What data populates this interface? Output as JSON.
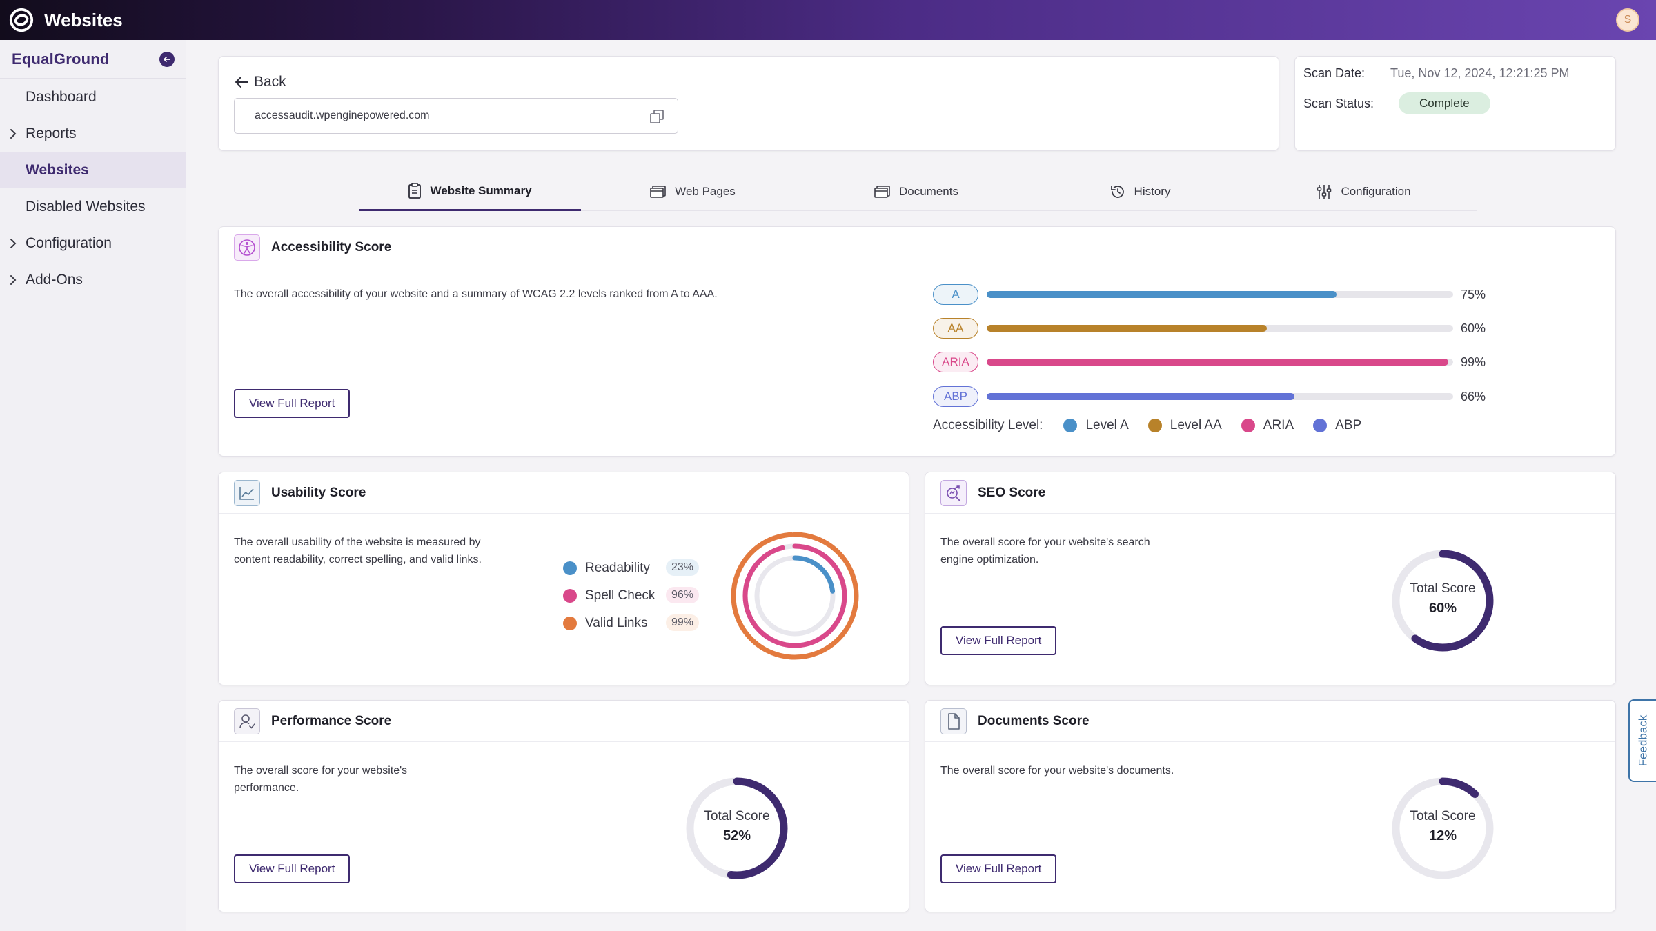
{
  "app": {
    "title": "Websites",
    "avatar_initial": "S"
  },
  "sidebar": {
    "org_name": "EqualGround",
    "items": [
      {
        "label": "Dashboard"
      },
      {
        "label": "Reports"
      },
      {
        "label": "Websites"
      },
      {
        "label": "Disabled Websites"
      },
      {
        "label": "Configuration"
      },
      {
        "label": "Add-Ons"
      }
    ]
  },
  "header": {
    "back_label": "Back",
    "url": "accessaudit.wpenginepowered.com",
    "scan_date_label": "Scan Date:",
    "scan_date_value": "Tue, Nov 12, 2024, 12:21:25 PM",
    "scan_status_label": "Scan Status:",
    "scan_status_value": "Complete"
  },
  "tabs": [
    {
      "label": "Website Summary",
      "icon": "clipboard-icon"
    },
    {
      "label": "Web Pages",
      "icon": "browser-icon"
    },
    {
      "label": "Documents",
      "icon": "browser-icon"
    },
    {
      "label": "History",
      "icon": "history-icon"
    },
    {
      "label": "Configuration",
      "icon": "sliders-icon"
    }
  ],
  "accessibility": {
    "title": "Accessibility Score",
    "description": "The overall accessibility of your website and a summary of WCAG 2.2 levels ranked from A to AAA.",
    "button": "View Full Report",
    "legend_label": "Accessibility Level:",
    "levels": [
      {
        "badge": "A",
        "value": 75,
        "pct": "75%",
        "legend": "Level A",
        "color": "#4a90c8"
      },
      {
        "badge": "AA",
        "value": 60,
        "pct": "60%",
        "legend": "Level AA",
        "color": "#b8822a"
      },
      {
        "badge": "ARIA",
        "value": 99,
        "pct": "99%",
        "legend": "ARIA",
        "color": "#d9488a"
      },
      {
        "badge": "ABP",
        "value": 66,
        "pct": "66%",
        "legend": "ABP",
        "color": "#6272d6"
      }
    ]
  },
  "usability": {
    "title": "Usability Score",
    "description_line1": "The overall usability of the website is measured by",
    "description_line2": "content readability, correct spelling, and valid links.",
    "metrics": [
      {
        "label": "Readability",
        "value": 23,
        "pct": "23%",
        "color": "#4a90c8"
      },
      {
        "label": "Spell Check",
        "value": 96,
        "pct": "96%",
        "color": "#d9488a"
      },
      {
        "label": "Valid Links",
        "value": 99,
        "pct": "99%",
        "color": "#e37a3e"
      }
    ]
  },
  "seo": {
    "title": "SEO Score",
    "description_line1": "The overall score for your website's search",
    "description_line2": "engine optimization.",
    "button": "View Full Report",
    "total_label": "Total Score",
    "value": 60,
    "pct": "60%"
  },
  "performance": {
    "title": "Performance Score",
    "description_line1": "The overall score for your website's",
    "description_line2": "performance.",
    "button": "View Full Report",
    "total_label": "Total Score",
    "value": 52,
    "pct": "52%"
  },
  "documents": {
    "title": "Documents Score",
    "description": "The overall score for your website's documents.",
    "button": "View Full Report",
    "total_label": "Total Score",
    "value": 12,
    "pct": "12%"
  },
  "feedback_label": "Feedback",
  "colors": {
    "brand": "#3e2a6f",
    "track": "#e8e7ed",
    "donut": "#3e2a6f"
  }
}
